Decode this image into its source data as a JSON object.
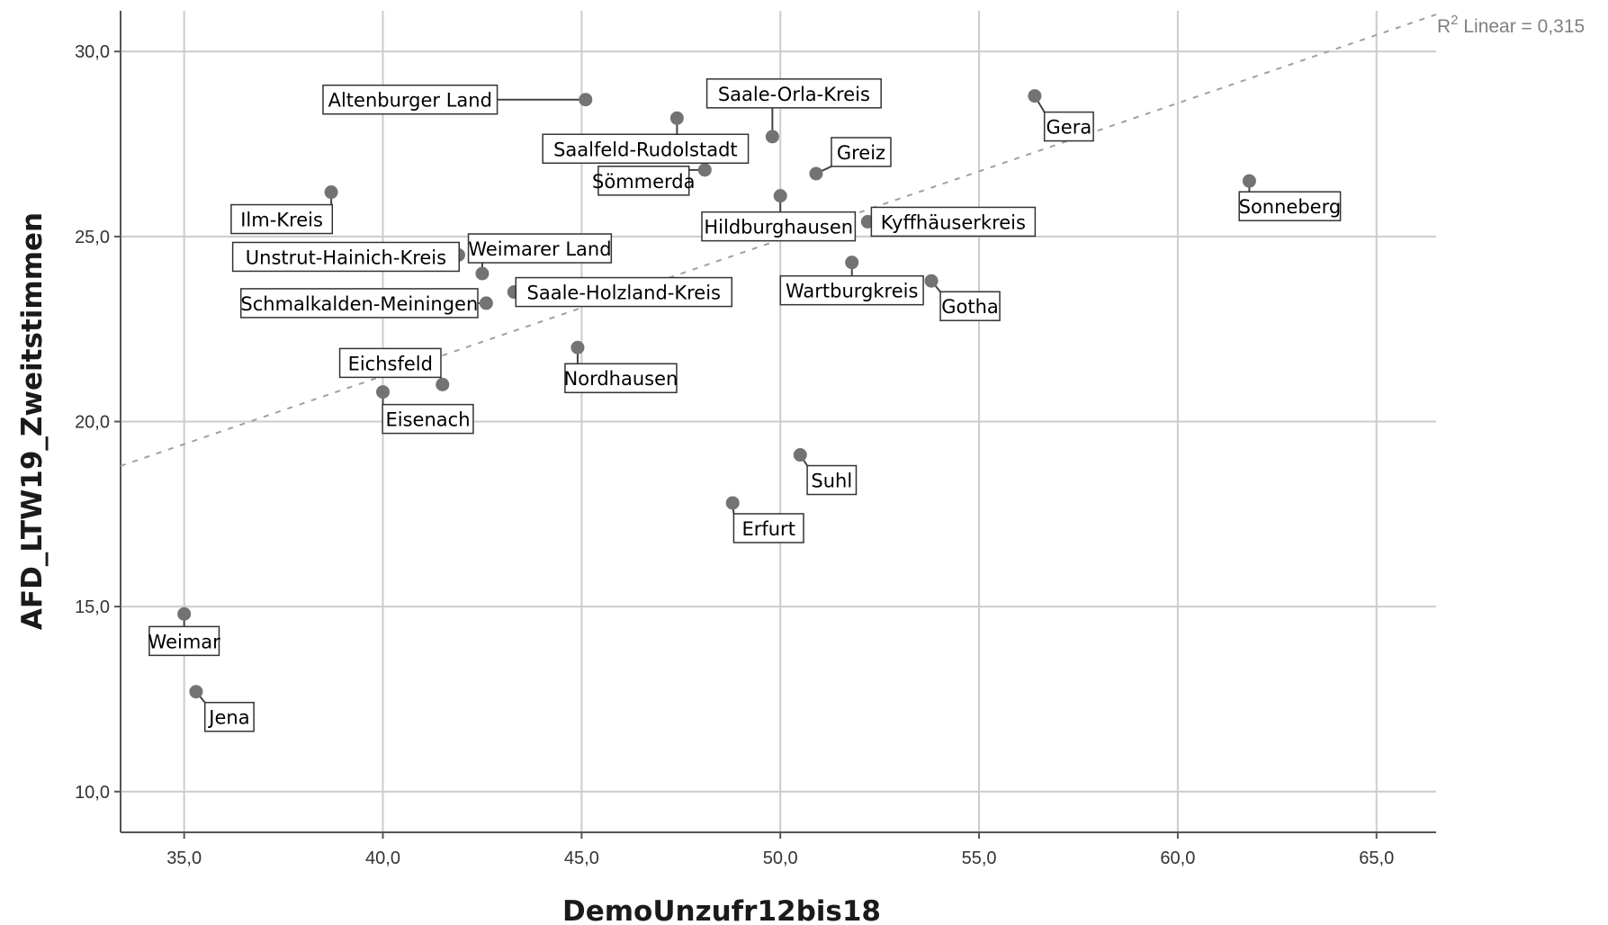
{
  "chart_data": {
    "type": "scatter",
    "xlabel": "DemoUnzufr12bis18",
    "ylabel": "AFD_LTW19_Zweitstimmen",
    "xlim": [
      33.4,
      66.5
    ],
    "ylim": [
      8.9,
      31.1
    ],
    "x_ticks": [
      35,
      40,
      45,
      50,
      55,
      60,
      65
    ],
    "x_tick_labels": [
      "35,0",
      "40,0",
      "45,0",
      "50,0",
      "55,0",
      "60,0",
      "65,0"
    ],
    "y_ticks": [
      10,
      15,
      20,
      25,
      30
    ],
    "y_tick_labels": [
      "10,0",
      "15,0",
      "20,0",
      "25,0",
      "30,0"
    ],
    "grid": true,
    "point_color": "#737373",
    "fit_line": {
      "type": "linear",
      "label_prefix": "R",
      "label_exponent": "2",
      "label_suffix": " Linear = 0,315",
      "points": [
        [
          33.4,
          18.8
        ],
        [
          66.5,
          31.0
        ]
      ],
      "color": "#a0a0a0"
    },
    "points": [
      {
        "label": "Altenburger Land",
        "x": 45.1,
        "y": 28.7
      },
      {
        "label": "Saalfeld-Rudolstadt",
        "x": 47.4,
        "y": 28.2
      },
      {
        "label": "Saale-Orla-Kreis",
        "x": 49.8,
        "y": 27.7
      },
      {
        "label": "Gera",
        "x": 56.4,
        "y": 28.8
      },
      {
        "label": "Greiz",
        "x": 50.9,
        "y": 26.7
      },
      {
        "label": "Sömmerda",
        "x": 48.1,
        "y": 26.8
      },
      {
        "label": "Ilm-Kreis",
        "x": 38.7,
        "y": 26.2
      },
      {
        "label": "Hildburghausen",
        "x": 50.0,
        "y": 26.1
      },
      {
        "label": "Kyffhäuserkreis",
        "x": 52.2,
        "y": 25.4
      },
      {
        "label": "Sonneberg",
        "x": 61.8,
        "y": 26.5
      },
      {
        "label": "Unstrut-Hainich-Kreis",
        "x": 41.9,
        "y": 24.5
      },
      {
        "label": "Weimarer Land",
        "x": 42.5,
        "y": 24.0
      },
      {
        "label": "Saale-Holzland-Kreis",
        "x": 43.3,
        "y": 23.5
      },
      {
        "label": "Schmalkalden-Meiningen",
        "x": 42.6,
        "y": 23.2
      },
      {
        "label": "Wartburgkreis",
        "x": 51.8,
        "y": 24.3
      },
      {
        "label": "Gotha",
        "x": 53.8,
        "y": 23.8
      },
      {
        "label": "Nordhausen",
        "x": 44.9,
        "y": 22.0
      },
      {
        "label": "Eichsfeld",
        "x": 41.5,
        "y": 21.0
      },
      {
        "label": "Eisenach",
        "x": 40.0,
        "y": 20.8
      },
      {
        "label": "Suhl",
        "x": 50.5,
        "y": 19.1
      },
      {
        "label": "Erfurt",
        "x": 48.8,
        "y": 17.8
      },
      {
        "label": "Weimar",
        "x": 35.0,
        "y": 14.8
      },
      {
        "label": "Jena",
        "x": 35.3,
        "y": 12.7
      }
    ]
  }
}
